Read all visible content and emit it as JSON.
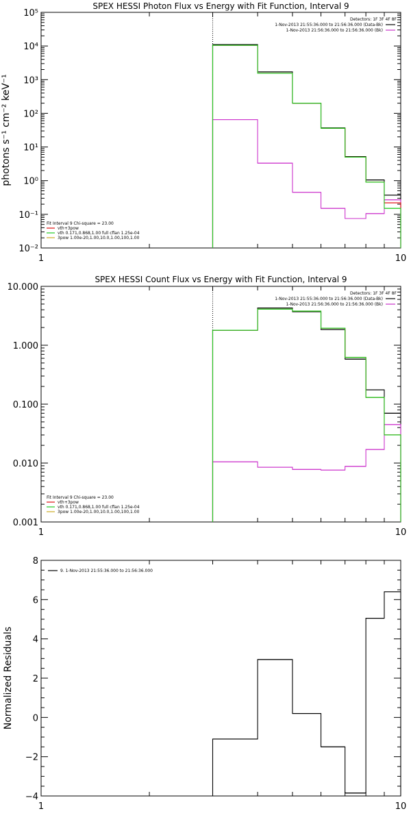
{
  "chart_data": [
    {
      "type": "line",
      "title": "SPEX HESSI Photon Flux vs Energy with Fit Function, Interval 9",
      "xlabel": "",
      "ylabel": "photons s⁻¹ cm⁻² keV⁻¹",
      "xscale": "log",
      "yscale": "log",
      "xlim": [
        1,
        10
      ],
      "ylim": [
        0.01,
        100000
      ],
      "x_tick_labels": [
        "1",
        "10"
      ],
      "y_ticks": [
        {
          "v": 0.01,
          "label": "10⁻²"
        },
        {
          "v": 0.1,
          "label": "10⁻¹"
        },
        {
          "v": 1,
          "label": "10⁰"
        },
        {
          "v": 10,
          "label": "10¹"
        },
        {
          "v": 100,
          "label": "10²"
        },
        {
          "v": 1000,
          "label": "10³"
        },
        {
          "v": 10000,
          "label": "10⁴"
        },
        {
          "v": 100000,
          "label": "10⁵"
        }
      ],
      "vline_x": 3,
      "bin_edges": [
        3,
        4,
        5,
        6,
        7,
        8,
        9,
        10
      ],
      "series": [
        {
          "name": "1-Nov-2013 21:55:36.000 to 21:56:36.000 (Data-Bk)",
          "color": "#000000",
          "values": [
            11000,
            1700,
            200,
            37,
            5.2,
            1.05,
            0.37
          ]
        },
        {
          "name": "1-Nov-2013 21:56:36.000 to 21:56:36.000 (Bk)",
          "color": "#cc33cc",
          "values": [
            65,
            3.3,
            0.45,
            0.15,
            0.075,
            0.105,
            0.27
          ]
        },
        {
          "name": "vth+3pow",
          "color": "#e01010",
          "values": [
            10500,
            1550,
            200,
            36,
            5.0,
            0.9,
            0.22
          ]
        },
        {
          "name": "vth 0.171,0.868,1.00 full cflan 1.25e-04",
          "color": "#22cc22",
          "values": [
            10500,
            1550,
            200,
            36,
            5.0,
            0.9,
            0.15
          ]
        }
      ],
      "legend_top": {
        "title": "Detectors: 1F 3F 4F 8F",
        "entries": [
          {
            "text": "1-Nov-2013 21:55:36.000 to 21:56:36.000 (Data-Bk)",
            "color": "#000000"
          },
          {
            "text": "1-Nov-2013 21:56:36.000 to 21:56:36.000 (Bk)",
            "color": "#cc33cc"
          }
        ]
      },
      "legend_bottom": {
        "title": "Fit Interval 9   Chi-square = 23.00",
        "entries": [
          {
            "text": "vth+3pow",
            "color": "#e01010"
          },
          {
            "text": "vth 0.171,0.868,1.00  full cflan 1.25e-04",
            "color": "#22cc22"
          },
          {
            "text": "3pow 1.00e-20,1.00,10.0,1.00,100,1.00",
            "color": "#ccaa22"
          }
        ]
      }
    },
    {
      "type": "line",
      "title": "SPEX HESSI Count Flux vs Energy with Fit Function, Interval 9",
      "xlabel": "",
      "ylabel": "",
      "xscale": "log",
      "yscale": "log",
      "xlim": [
        1,
        10
      ],
      "ylim": [
        0.001,
        10
      ],
      "x_tick_labels": [
        "1",
        "10"
      ],
      "y_ticks": [
        {
          "v": 0.001,
          "label": "0.001"
        },
        {
          "v": 0.01,
          "label": "0.010"
        },
        {
          "v": 0.1,
          "label": "0.100"
        },
        {
          "v": 1,
          "label": "1.000"
        },
        {
          "v": 10,
          "label": "10.000"
        }
      ],
      "vline_x": 3,
      "bin_edges": [
        3,
        4,
        5,
        6,
        7,
        8,
        9,
        10
      ],
      "series": [
        {
          "name": "1-Nov-2013 21:55:36.000 to 21:56:36.000 (Data-Bk)",
          "color": "#000000",
          "values": [
            1.8,
            4.3,
            3.7,
            1.85,
            0.58,
            0.175,
            0.07
          ]
        },
        {
          "name": "1-Nov-2013 21:56:36.000 to 21:56:36.000 (Bk)",
          "color": "#cc33cc",
          "values": [
            0.0105,
            0.0085,
            0.0078,
            0.0076,
            0.0088,
            0.017,
            0.045
          ]
        },
        {
          "name": "vth+3pow",
          "color": "#e01010",
          "values": [
            1.8,
            4.1,
            3.8,
            1.95,
            0.62,
            0.13,
            0.03
          ]
        },
        {
          "name": "vth 0.171,0.868,1.00 full cflan 1.25e-04",
          "color": "#22cc22",
          "values": [
            1.8,
            4.1,
            3.8,
            1.95,
            0.62,
            0.13,
            0.03
          ]
        }
      ],
      "legend_top": {
        "title": "Detectors: 1F 3F 4F 8F",
        "entries": [
          {
            "text": "1-Nov-2013 21:55:36.000 to 21:56:36.000 (Data-Bk)",
            "color": "#000000"
          },
          {
            "text": "1-Nov-2013 21:56:36.000 to 21:56:36.000 (Bk)",
            "color": "#cc33cc"
          }
        ]
      },
      "legend_bottom": {
        "title": "Fit Interval 9   Chi-square = 23.00",
        "entries": [
          {
            "text": "vth+3pow",
            "color": "#e01010"
          },
          {
            "text": "vth 0.171,0.868,1.00  full cflan 1.25e-04",
            "color": "#22cc22"
          },
          {
            "text": "3pow 1.00e-20,1.00,10.0,1.00,100,1.00",
            "color": "#ccaa22"
          }
        ]
      }
    },
    {
      "type": "line",
      "title": "",
      "xlabel": "",
      "ylabel": "Normalized Residuals",
      "xscale": "log",
      "yscale": "linear",
      "xlim": [
        1,
        10
      ],
      "ylim": [
        -4,
        8
      ],
      "x_tick_labels": [
        "1",
        "10"
      ],
      "y_ticks": [
        {
          "v": -4,
          "label": "−4"
        },
        {
          "v": -2,
          "label": "−2"
        },
        {
          "v": 0,
          "label": "0"
        },
        {
          "v": 2,
          "label": "2"
        },
        {
          "v": 4,
          "label": "4"
        },
        {
          "v": 6,
          "label": "6"
        },
        {
          "v": 8,
          "label": "8"
        }
      ],
      "bin_edges": [
        3,
        4,
        5,
        6,
        7,
        8,
        9,
        10
      ],
      "series": [
        {
          "name": "9.  1-Nov-2013 21:55:36.000 to 21:56:36.000",
          "color": "#000000",
          "values": [
            -1.1,
            2.95,
            0.2,
            -1.5,
            -3.85,
            5.05,
            6.4
          ]
        }
      ],
      "legend_top": {
        "title": "",
        "entries": [
          {
            "text": "9.  1-Nov-2013 21:55:36.000 to 21:56:36.000",
            "color": "#000000"
          }
        ]
      }
    }
  ]
}
